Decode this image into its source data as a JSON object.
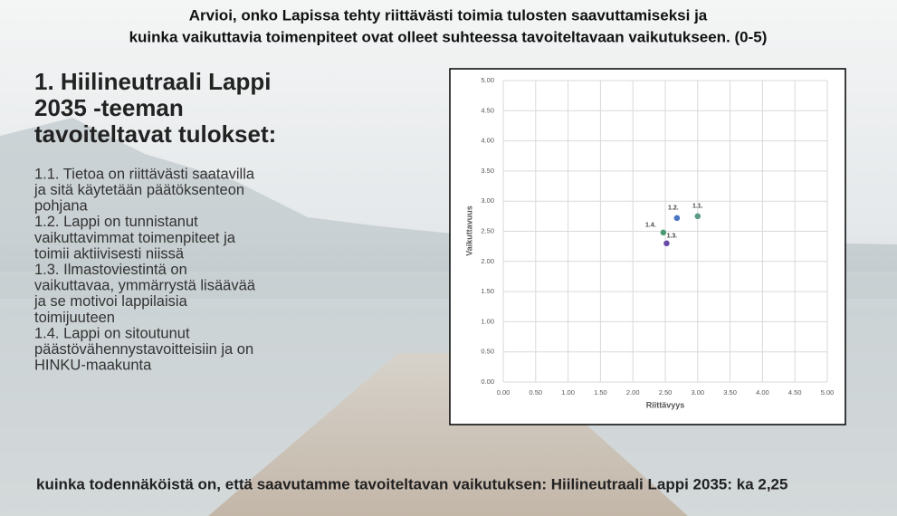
{
  "slide": {
    "title_lines": [
      "Arvioi, onko Lapissa tehty riittävästi toimia tulosten saavuttamiseksi ja",
      "kuinka vaikuttavia toimenpiteet ovat olleet suhteessa tavoiteltavaan vaikutukseen. (0-5)"
    ],
    "heading_lines": [
      "1. Hiilineutraali Lappi",
      "2035 -teeman",
      "tavoiteltavat tulokset:"
    ],
    "body_lines": [
      "1.1. Tietoa on riittävästi saatavilla",
      "ja sitä käytetään päätöksenteon",
      "pohjana",
      "1.2. Lappi on tunnistanut",
      "vaikuttavimmat toimenpiteet ja",
      "toimii aktiivisesti niissä",
      "1.3. Ilmastoviestintä on",
      "vaikuttavaa, ymmärrystä lisäävää",
      "ja se motivoi lappilaisia",
      "toimijuuteen",
      "1.4. Lappi on sitoutunut",
      "päästövähennystavoitteisiin ja on",
      "HINKU-maakunta"
    ],
    "footer": "kuinka todennäköistä on, että saavutamme tavoiteltavan vaikutuksen: Hiilineutraali Lappi  2035: ka 2,25"
  },
  "chart_data": {
    "type": "scatter",
    "x_label": "Riittävyys",
    "y_label": "Vaikuttavuus",
    "x": [
      3.0,
      2.68,
      2.52,
      2.47
    ],
    "values": [
      2.75,
      2.72,
      2.3,
      2.48
    ],
    "point_labels": [
      "1.1.",
      "1.2.",
      "1.3.",
      "1.4."
    ],
    "point_colors": [
      "#5a9a88",
      "#4a74c4",
      "#6a4aa8",
      "#4a9a72"
    ],
    "xlim": [
      0,
      5
    ],
    "ylim": [
      0,
      5
    ],
    "xticks": [
      {
        "value": 0,
        "label": "0.00"
      },
      {
        "value": 0.5,
        "label": "0.50"
      },
      {
        "value": 1,
        "label": "1.00"
      },
      {
        "value": 1.5,
        "label": "1.50"
      },
      {
        "value": 2,
        "label": "2.00"
      },
      {
        "value": 2.5,
        "label": "2.50"
      },
      {
        "value": 3,
        "label": "3.00"
      },
      {
        "value": 3.5,
        "label": "3.50"
      },
      {
        "value": 4,
        "label": "4.00"
      },
      {
        "value": 4.5,
        "label": "4.50"
      },
      {
        "value": 5,
        "label": "5.00"
      }
    ],
    "yticks": [
      {
        "value": 0,
        "label": "0.00"
      },
      {
        "value": 0.5,
        "label": "0.50"
      },
      {
        "value": 1,
        "label": "1.00"
      },
      {
        "value": 1.5,
        "label": "1.50"
      },
      {
        "value": 2,
        "label": "2.00"
      },
      {
        "value": 2.5,
        "label": "2.50"
      },
      {
        "value": 3,
        "label": "3.00"
      },
      {
        "value": 3.5,
        "label": "3.50"
      },
      {
        "value": 4,
        "label": "4.00"
      },
      {
        "value": 4.5,
        "label": "4.50"
      },
      {
        "value": 5,
        "label": "5.00"
      }
    ],
    "grid": true
  }
}
